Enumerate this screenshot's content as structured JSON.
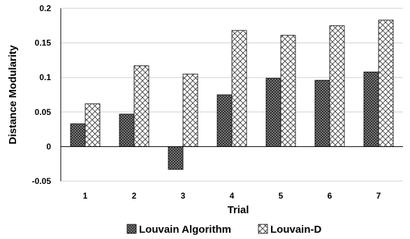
{
  "chart_data": {
    "type": "bar",
    "title": "",
    "xlabel": "Trial",
    "ylabel": "Distance Modularity",
    "categories": [
      "1",
      "2",
      "3",
      "4",
      "5",
      "6",
      "7"
    ],
    "ylim": [
      -0.05,
      0.2
    ],
    "yticks": [
      -0.05,
      0,
      0.05,
      0.1,
      0.15,
      0.2
    ],
    "ytick_labels": [
      "-0.05",
      "0",
      "0.05",
      "0.1",
      "0.15",
      "0.2"
    ],
    "grid": "horizontal",
    "legend_position": "bottom",
    "series": [
      {
        "name": "Louvain Algorithm",
        "pattern": "dark-crosshatch",
        "values": [
          0.033,
          0.047,
          -0.033,
          0.075,
          0.099,
          0.096,
          0.108
        ]
      },
      {
        "name": "Louvain-D",
        "pattern": "light-crosshatch",
        "values": [
          0.062,
          0.117,
          0.105,
          0.168,
          0.161,
          0.175,
          0.183
        ]
      }
    ]
  }
}
